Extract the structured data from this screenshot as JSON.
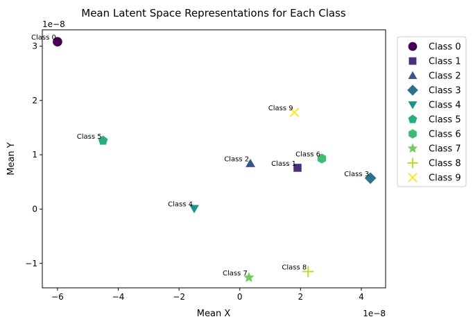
{
  "chart_data": {
    "type": "scatter",
    "title": "Mean Latent Space Representations for Each Class",
    "xlabel": "Mean X",
    "ylabel": "Mean Y",
    "x_offset_text": "1e−8",
    "y_offset_text": "1e−8",
    "xlim": [
      -6.5,
      4.8
    ],
    "ylim": [
      -1.45,
      3.3
    ],
    "x_ticks": [
      {
        "value": -6,
        "label": "−6"
      },
      {
        "value": -4,
        "label": "−4"
      },
      {
        "value": -2,
        "label": "−2"
      },
      {
        "value": 0,
        "label": "0"
      },
      {
        "value": 2,
        "label": "2"
      },
      {
        "value": 4,
        "label": "4"
      }
    ],
    "y_ticks": [
      {
        "value": -1,
        "label": "−1"
      },
      {
        "value": 0,
        "label": "0"
      },
      {
        "value": 1,
        "label": "1"
      },
      {
        "value": 2,
        "label": "2"
      },
      {
        "value": 3,
        "label": "3"
      }
    ],
    "grid": false,
    "legend_position": "outside-right",
    "series": [
      {
        "name": "Class 0",
        "x": -6.0,
        "y": 3.08,
        "marker": "circle",
        "color": "#440154",
        "label": "Class 0"
      },
      {
        "name": "Class 1",
        "x": 1.9,
        "y": 0.76,
        "marker": "square",
        "color": "#472d7b",
        "label": "Class 1"
      },
      {
        "name": "Class 2",
        "x": 0.35,
        "y": 0.84,
        "marker": "triangle-up",
        "color": "#3b528b",
        "label": "Class 2"
      },
      {
        "name": "Class 3",
        "x": 4.3,
        "y": 0.57,
        "marker": "diamond",
        "color": "#2c728e",
        "label": "Class 3"
      },
      {
        "name": "Class 4",
        "x": -1.5,
        "y": 0.01,
        "marker": "triangle-down",
        "color": "#21918c",
        "label": "Class 4"
      },
      {
        "name": "Class 5",
        "x": -4.5,
        "y": 1.26,
        "marker": "pentagon",
        "color": "#28ae80",
        "label": "Class 5"
      },
      {
        "name": "Class 6",
        "x": 2.7,
        "y": 0.93,
        "marker": "hexagon",
        "color": "#3fbc73",
        "label": "Class 6"
      },
      {
        "name": "Class 7",
        "x": 0.3,
        "y": -1.26,
        "marker": "star",
        "color": "#6ccd5a",
        "label": "Class 7"
      },
      {
        "name": "Class 8",
        "x": 2.25,
        "y": -1.15,
        "marker": "plus",
        "color": "#b5de2b",
        "label": "Class 8"
      },
      {
        "name": "Class 9",
        "x": 1.8,
        "y": 1.78,
        "marker": "x",
        "color": "#fde725",
        "label": "Class 9"
      }
    ]
  }
}
